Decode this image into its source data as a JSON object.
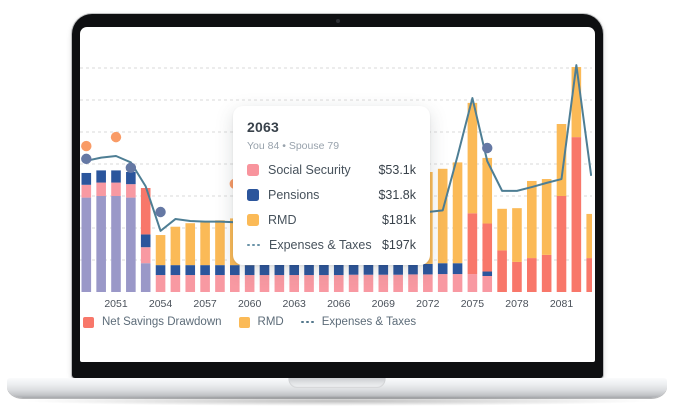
{
  "tooltip": {
    "year": "2063",
    "subtitle": "You 84 • Spouse 79",
    "rows": [
      {
        "name": "Social Security",
        "value": "$53.1k",
        "icon": "square",
        "color": "#f8949d"
      },
      {
        "name": "Pensions",
        "value": "$31.8k",
        "icon": "square",
        "color": "#2b559c"
      },
      {
        "name": "RMD",
        "value": "$181k",
        "icon": "square",
        "color": "#fbba57"
      },
      {
        "name": "Expenses & Taxes",
        "value": "$197k",
        "icon": "dotted-line",
        "color": "#6b93a8"
      }
    ]
  },
  "legend": {
    "items": [
      {
        "label": "Net Savings Drawdown",
        "icon": "square",
        "color": "#f8776a"
      },
      {
        "label": "RMD",
        "icon": "square",
        "color": "#fbba57"
      },
      {
        "label": "Expenses & Taxes",
        "icon": "dotted-line",
        "color": "#54788c"
      }
    ]
  },
  "chart_data": {
    "type": "bar",
    "subtype": "stacked-bars with overlay line and scatter dots",
    "value_unit": "USD thousands ($k)",
    "x": [
      2049,
      2050,
      2051,
      2052,
      2053,
      2054,
      2055,
      2056,
      2057,
      2058,
      2059,
      2060,
      2061,
      2062,
      2063,
      2064,
      2065,
      2066,
      2067,
      2068,
      2069,
      2070,
      2071,
      2072,
      2073,
      2074,
      2075,
      2076,
      2077,
      2078,
      2079,
      2080,
      2081,
      2082,
      2083
    ],
    "series": [
      {
        "key": "unlabeled_purple",
        "name": "",
        "color": "#9a98c8",
        "values": [
          295,
          300,
          300,
          295,
          90,
          0,
          0,
          0,
          0,
          0,
          0,
          0,
          0,
          0,
          0,
          0,
          0,
          0,
          0,
          0,
          0,
          0,
          0,
          0,
          0,
          0,
          0,
          0,
          0,
          0,
          0,
          0,
          0,
          0,
          0
        ]
      },
      {
        "key": "social_security",
        "name": "Social Security",
        "color": "#f899a2",
        "values": [
          40,
          42,
          42,
          42,
          50,
          53,
          53,
          53,
          53,
          53,
          53,
          53,
          53,
          53,
          53.1,
          53,
          53,
          53,
          54,
          54,
          54,
          54,
          55,
          55,
          56,
          56,
          56,
          50,
          0,
          0,
          0,
          0,
          0,
          0,
          0
        ]
      },
      {
        "key": "pensions",
        "name": "Pensions",
        "color": "#2b559c",
        "values": [
          37,
          38,
          38,
          38,
          40,
          31,
          31,
          31,
          31,
          31,
          31,
          31,
          32,
          32,
          31.8,
          32,
          32,
          32,
          32,
          32,
          32,
          33,
          33,
          33,
          34,
          34,
          0,
          14,
          0,
          0,
          0,
          0,
          0,
          0,
          0
        ]
      },
      {
        "key": "net_savings_drawdown",
        "name": "Net Savings Drawdown",
        "color": "#f8776a",
        "values": [
          0,
          0,
          0,
          0,
          145,
          0,
          0,
          0,
          0,
          0,
          0,
          0,
          0,
          0,
          0,
          0,
          0,
          0,
          0,
          0,
          0,
          0,
          0,
          0,
          0,
          0,
          190,
          150,
          130,
          94,
          106,
          116,
          300,
          484,
          106
        ]
      },
      {
        "key": "rmd",
        "name": "RMD",
        "color": "#fbba57",
        "values": [
          0,
          0,
          0,
          0,
          0,
          94,
          120,
          131,
          134,
          140,
          146,
          152,
          160,
          170,
          181,
          192,
          203,
          214,
          226,
          238,
          250,
          262,
          275,
          287,
          295,
          315,
          345,
          205,
          130,
          168,
          241,
          237,
          225,
          219,
          138
        ]
      }
    ],
    "line": {
      "name": "Expenses & Taxes",
      "color": "#4e7e94",
      "values": [
        410,
        420,
        425,
        405,
        330,
        191,
        228,
        222,
        220,
        220,
        218,
        212,
        205,
        200,
        197,
        197,
        198,
        200,
        202,
        205,
        210,
        220,
        235,
        250,
        255,
        425,
        606,
        409,
        316,
        316,
        328,
        341,
        353,
        709,
        363
      ]
    },
    "scatter": [
      {
        "color": "#f99b66",
        "points": [
          [
            2049,
            456
          ],
          [
            2051,
            484
          ],
          [
            2059,
            338
          ]
        ]
      },
      {
        "color": "#6578a4",
        "points": [
          [
            2049,
            416
          ],
          [
            2052,
            388
          ],
          [
            2054,
            250
          ],
          [
            2076,
            450
          ]
        ]
      }
    ],
    "xticks": [
      2051,
      2054,
      2057,
      2060,
      2063,
      2066,
      2069,
      2072,
      2075,
      2078,
      2081
    ],
    "gridlines": [
      100,
      200,
      300,
      400,
      500,
      600,
      700
    ],
    "ylim": [
      0,
      750
    ],
    "grid": "dashed horizontal",
    "legend_position": "bottom-left",
    "title": "",
    "xlabel": "",
    "ylabel": ""
  }
}
